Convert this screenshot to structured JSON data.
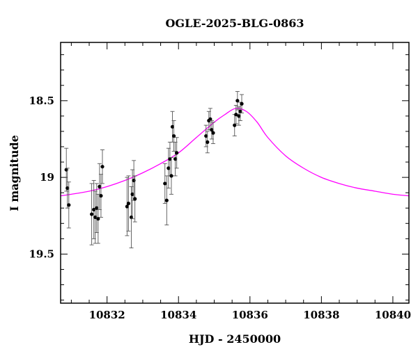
{
  "chart_data": {
    "type": "scatter",
    "title": "OGLE-2025-BLG-0863",
    "xlabel": "HJD - 2450000",
    "ylabel": "I magnitude",
    "xlim": [
      10830.7,
      10840.45
    ],
    "ylim": [
      19.82,
      18.12
    ],
    "y_inverted": true,
    "x_ticks": [
      10832,
      10834,
      10836,
      10838,
      10840
    ],
    "x_tick_labels": [
      "10832",
      "10834",
      "10836",
      "10838",
      "10840"
    ],
    "y_ticks": [
      18.5,
      19,
      19.5
    ],
    "y_tick_labels": [
      "18.5",
      "19",
      "19.5"
    ],
    "grid": false,
    "series": [
      {
        "kind": "points_with_errorbars",
        "color": "#000000",
        "points": [
          {
            "x": 10830.86,
            "y": 18.95,
            "err": 0.14
          },
          {
            "x": 10830.89,
            "y": 19.07,
            "err": 0.13
          },
          {
            "x": 10830.93,
            "y": 19.18,
            "err": 0.15
          },
          {
            "x": 10831.57,
            "y": 19.24,
            "err": 0.2
          },
          {
            "x": 10831.63,
            "y": 19.21,
            "err": 0.19
          },
          {
            "x": 10831.67,
            "y": 19.26,
            "err": 0.17
          },
          {
            "x": 10831.71,
            "y": 19.2,
            "err": 0.16
          },
          {
            "x": 10831.75,
            "y": 19.27,
            "err": 0.16
          },
          {
            "x": 10831.79,
            "y": 19.06,
            "err": 0.15
          },
          {
            "x": 10831.83,
            "y": 19.12,
            "err": 0.14
          },
          {
            "x": 10831.87,
            "y": 18.93,
            "err": 0.11
          },
          {
            "x": 10832.56,
            "y": 19.19,
            "err": 0.19
          },
          {
            "x": 10832.6,
            "y": 19.17,
            "err": 0.18
          },
          {
            "x": 10832.68,
            "y": 19.26,
            "err": 0.2
          },
          {
            "x": 10832.71,
            "y": 19.11,
            "err": 0.16
          },
          {
            "x": 10832.75,
            "y": 19.02,
            "err": 0.13
          },
          {
            "x": 10832.78,
            "y": 19.14,
            "err": 0.15
          },
          {
            "x": 10833.62,
            "y": 19.04,
            "err": 0.13
          },
          {
            "x": 10833.67,
            "y": 19.15,
            "err": 0.16
          },
          {
            "x": 10833.72,
            "y": 18.94,
            "err": 0.13
          },
          {
            "x": 10833.76,
            "y": 18.88,
            "err": 0.11
          },
          {
            "x": 10833.8,
            "y": 18.99,
            "err": 0.12
          },
          {
            "x": 10833.83,
            "y": 18.67,
            "err": 0.1
          },
          {
            "x": 10833.87,
            "y": 18.73,
            "err": 0.1
          },
          {
            "x": 10833.91,
            "y": 18.88,
            "err": 0.11
          },
          {
            "x": 10833.95,
            "y": 18.84,
            "err": 0.1
          },
          {
            "x": 10834.77,
            "y": 18.73,
            "err": 0.07
          },
          {
            "x": 10834.81,
            "y": 18.77,
            "err": 0.07
          },
          {
            "x": 10834.85,
            "y": 18.63,
            "err": 0.06
          },
          {
            "x": 10834.89,
            "y": 18.62,
            "err": 0.07
          },
          {
            "x": 10834.93,
            "y": 18.69,
            "err": 0.06
          },
          {
            "x": 10834.97,
            "y": 18.71,
            "err": 0.07
          },
          {
            "x": 10835.57,
            "y": 18.66,
            "err": 0.07
          },
          {
            "x": 10835.61,
            "y": 18.59,
            "err": 0.06
          },
          {
            "x": 10835.65,
            "y": 18.5,
            "err": 0.06
          },
          {
            "x": 10835.69,
            "y": 18.6,
            "err": 0.06
          },
          {
            "x": 10835.73,
            "y": 18.57,
            "err": 0.06
          },
          {
            "x": 10835.77,
            "y": 18.52,
            "err": 0.06
          }
        ]
      },
      {
        "kind": "model_curve",
        "color": "#ff00ff",
        "x": [
          10830.7,
          10831.0,
          10831.5,
          10832.0,
          10832.5,
          10833.0,
          10833.5,
          10834.0,
          10834.5,
          10835.0,
          10835.3,
          10835.6,
          10835.9,
          10836.2,
          10836.5,
          10837.0,
          10837.5,
          10838.0,
          10838.5,
          10839.0,
          10839.5,
          10840.0,
          10840.45
        ],
        "y": [
          19.12,
          19.11,
          19.09,
          19.06,
          19.02,
          18.97,
          18.91,
          18.84,
          18.74,
          18.64,
          18.59,
          18.55,
          18.57,
          18.64,
          18.74,
          18.86,
          18.94,
          19.0,
          19.04,
          19.07,
          19.09,
          19.11,
          19.12
        ]
      }
    ]
  }
}
